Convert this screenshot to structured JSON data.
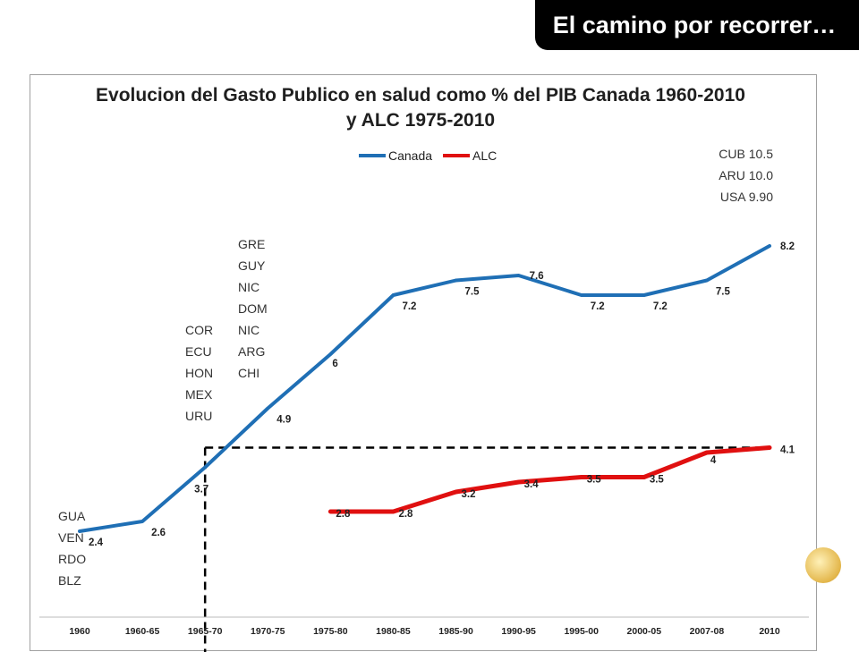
{
  "slide": {
    "title": "El camino por recorrer…"
  },
  "chart_data": {
    "type": "line",
    "title_lines": [
      "Evolucion del Gasto Publico en salud como %  del PIB Canada 1960-2010",
      "y ALC 1975-2010"
    ],
    "xlabel": "",
    "ylabel": "",
    "grid": false,
    "legend_position": "top-center",
    "categories": [
      "1960",
      "1960-65",
      "1965-70",
      "1970-75",
      "1975-80",
      "1980-85",
      "1985-90",
      "1990-95",
      "1995-00",
      "2000-05",
      "2007-08",
      "2010"
    ],
    "series": [
      {
        "name": "Canada",
        "color": "#1f6fb5",
        "values": [
          2.4,
          2.6,
          3.7,
          4.9,
          6,
          7.2,
          7.5,
          7.6,
          7.2,
          7.2,
          7.5,
          8.2
        ],
        "labels": [
          "2.4",
          "2.6",
          "3.7",
          "4.9",
          "6",
          "7.2",
          "7.5",
          "7.6",
          "7.2",
          "7.2",
          "7.5",
          "8.2"
        ]
      },
      {
        "name": "ALC",
        "color": "#e01010",
        "values": [
          null,
          null,
          null,
          null,
          2.8,
          2.8,
          3.2,
          3.4,
          3.5,
          3.5,
          4,
          4.1
        ],
        "labels": [
          "",
          "",
          "",
          "",
          "2.8",
          "2.8",
          "3.2",
          "3.4",
          "3.5",
          "3.5",
          "4",
          "4.1"
        ]
      }
    ],
    "reference_lines": [
      {
        "style": "dashed",
        "color": "#000000",
        "description": "horizontal at 4.1",
        "y": 4.1
      },
      {
        "style": "dashed",
        "color": "#000000",
        "description": "vertical at 1965-70",
        "x": "1965-70"
      }
    ],
    "annotations": [
      {
        "text": [
          "GUA",
          "VEN",
          "RDO",
          "BLZ"
        ],
        "near": "1960"
      },
      {
        "text": [
          "COR",
          "ECU",
          "HON",
          "MEX",
          "URU"
        ],
        "near": "1965-70"
      },
      {
        "text": [
          "GRE",
          "GUY",
          "NIC",
          "DOM",
          "NIC",
          "ARG",
          "CHI"
        ],
        "near": "1970-75"
      },
      {
        "text": [
          "CUB 10.5",
          "ARU 10.0",
          "USA 9.90"
        ],
        "near": "2010"
      }
    ]
  }
}
